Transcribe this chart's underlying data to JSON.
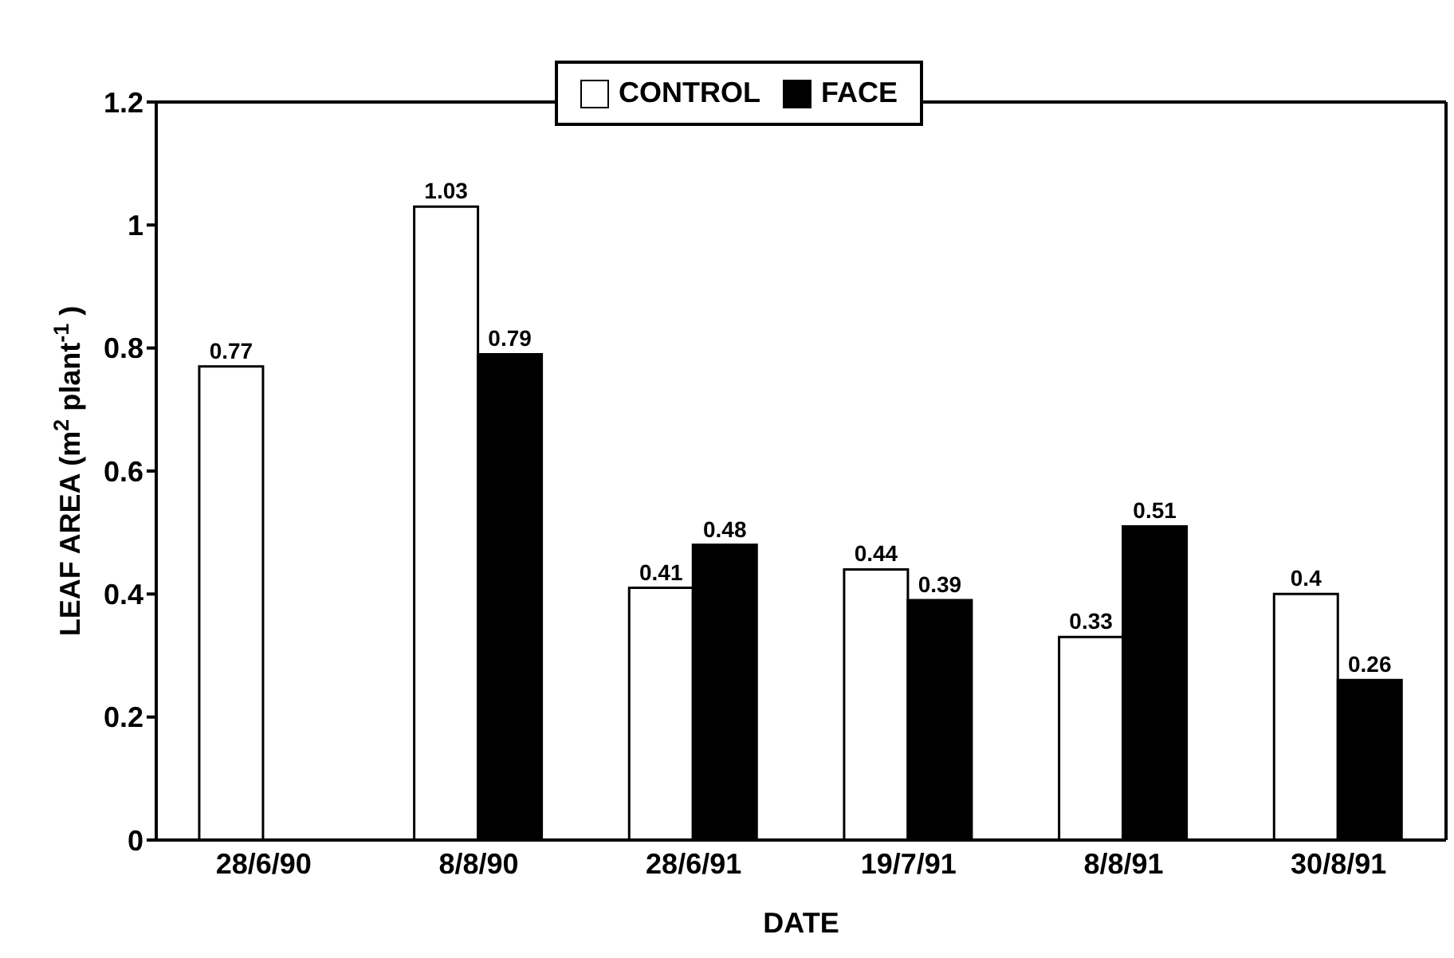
{
  "chart_data": {
    "type": "bar",
    "xlabel": "DATE",
    "ylabel": "LEAF AREA (m$^{2}$ plant$^{-1}$ )",
    "categories": [
      "28/6/90",
      "8/8/90",
      "28/6/91",
      "19/7/91",
      "8/8/91",
      "30/8/91"
    ],
    "series": [
      {
        "name": "CONTROL",
        "color": "#ffffff",
        "values": [
          0.77,
          1.03,
          0.41,
          0.44,
          0.33,
          0.4
        ]
      },
      {
        "name": "FACE",
        "color": "#000000",
        "values": [
          null,
          0.79,
          0.48,
          0.39,
          0.51,
          0.26
        ]
      }
    ],
    "ylim": [
      0,
      1.2
    ],
    "yticks": [
      0,
      0.2,
      0.4,
      0.6,
      0.8,
      1,
      1.2
    ],
    "data_labels": true,
    "legend": "top",
    "grid": false
  }
}
